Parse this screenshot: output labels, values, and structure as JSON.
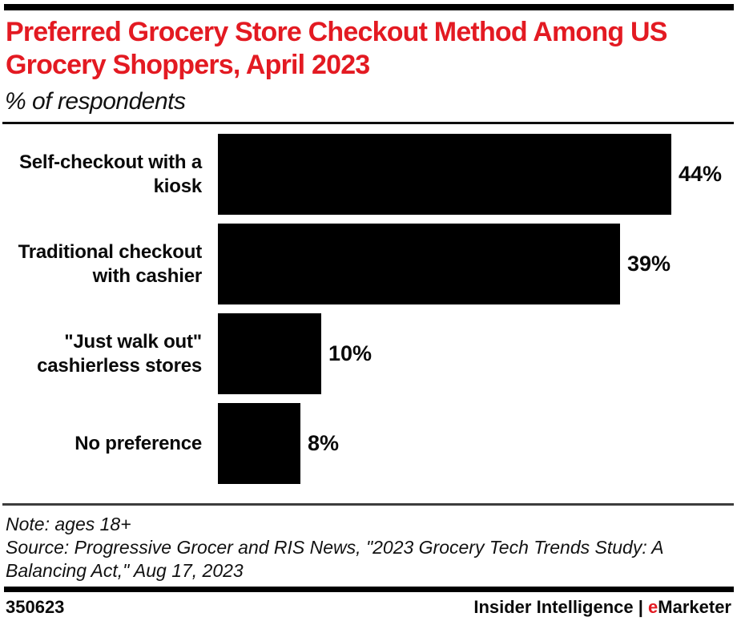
{
  "header": {
    "title": "Preferred Grocery Store Checkout Method Among US Grocery Shoppers, April 2023",
    "title_lines": [
      "Preferred Grocery Store Checkout Method Among US",
      "Grocery Shoppers, April 2023"
    ],
    "subtitle": "% of respondents"
  },
  "chart_data": {
    "type": "bar",
    "orientation": "horizontal",
    "title": "Preferred Grocery Store Checkout Method Among US Grocery Shoppers, April 2023",
    "subtitle": "% of respondents",
    "categories": [
      "Self-checkout with a kiosk",
      "Traditional checkout with cashier",
      "\"Just walk out\" cashierless stores",
      "No preference"
    ],
    "category_display_lines": [
      [
        "Self-checkout with a",
        "kiosk"
      ],
      [
        "Traditional checkout",
        "with cashier"
      ],
      [
        "\"Just walk out\"",
        "cashierless stores"
      ],
      [
        "No preference"
      ]
    ],
    "values": [
      44,
      39,
      10,
      8
    ],
    "value_labels": [
      "44%",
      "39%",
      "10%",
      "8%"
    ],
    "unit": "%",
    "xlim": [
      0,
      44
    ],
    "bar_color": "#000000",
    "grid": false,
    "legend": false
  },
  "notes": {
    "note": "Note: ages 18+",
    "source": "Source: Progressive Grocer and RIS News, \"2023 Grocery Tech Trends Study: A Balancing Act,\" Aug 17, 2023",
    "source_lines": [
      "Source: Progressive Grocer and RIS News, \"2023 Grocery Tech Trends Study: A",
      "Balancing Act,\" Aug 17, 2023"
    ]
  },
  "footer": {
    "chart_id": "350623",
    "attribution_name": "Insider Intelligence",
    "attribution_separator": "|",
    "brand_e": "e",
    "brand_rest": "Marketer"
  },
  "colors": {
    "accent_red": "#e31a22",
    "bar": "#000000",
    "rule_top": "#0d0d0d",
    "rule_mid": "#3d3d3d"
  }
}
